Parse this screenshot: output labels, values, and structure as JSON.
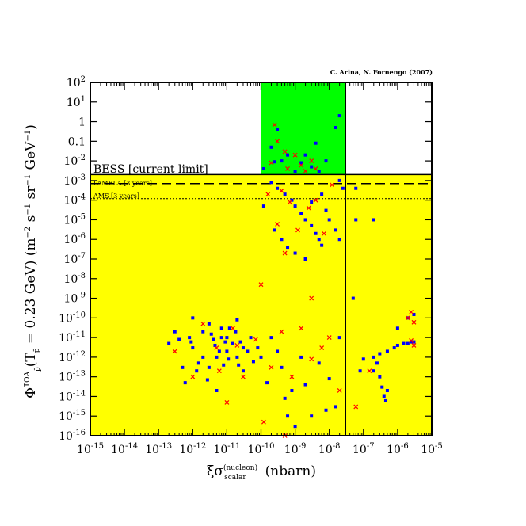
{
  "chart_data": {
    "type": "scatter",
    "credit": "C. Arina, N. Fornengo (2007)",
    "xlabel": "ξσ_scalar^(nucleon)   (nbarn)",
    "ylabel": "Φ_p̄^TOA (T_p̄ = 0.23 GeV)   (m^-2 s^-1 sr^-1 GeV^-1)",
    "x_scale": "log",
    "y_scale": "log",
    "xlim": [
      1e-15,
      1e-05
    ],
    "ylim": [
      1e-16,
      100
    ],
    "x_tick_exponents": [
      -15,
      -14,
      -13,
      -12,
      -11,
      -10,
      -9,
      -8,
      -7,
      -6,
      -5
    ],
    "y_tick_labels": [
      "10^2",
      "10^1",
      "1",
      "0.1",
      "10^-2",
      "10^-3",
      "10^-4",
      "10^-5",
      "10^-6",
      "10^-7",
      "10^-8",
      "10^-9",
      "10^-10",
      "10^-11",
      "10^-12",
      "10^-13",
      "10^-14",
      "10^-15",
      "10^-16"
    ],
    "y_tick_exponents": [
      2,
      1,
      0,
      -1,
      -2,
      -3,
      -4,
      -5,
      -6,
      -7,
      -8,
      -9,
      -10,
      -11,
      -12,
      -13,
      -14,
      -15,
      -16
    ],
    "annotations": {
      "bess": "BESS [current limit]",
      "pamela": "PAMELA [3 years]",
      "ams": "AMS [3 years]"
    },
    "limits": {
      "bess_y": 0.002,
      "pamela_y": 0.0007,
      "ams_y": 0.00012,
      "vertical_x": 3e-08
    },
    "regions": {
      "yellow_below_y": 0.002,
      "green_x": [
        1e-10,
        3e-08
      ],
      "green_y": [
        0.002,
        100
      ]
    },
    "colors": {
      "allowed_region": "#ffff00",
      "excluded_region": "#00ff00",
      "blue_points": "#0000ff",
      "red_points": "#ff0000"
    },
    "series": [
      {
        "marker": "square",
        "color": "#0000ff",
        "points": [
          [
            2e-10,
            0.05
          ],
          [
            3e-10,
            0.4
          ],
          [
            4e-10,
            0.01
          ],
          [
            6e-10,
            0.02
          ],
          [
            1e-09,
            0.003
          ],
          [
            1.5e-09,
            0.008
          ],
          [
            2e-09,
            0.02
          ],
          [
            3e-09,
            0.005
          ],
          [
            5e-09,
            0.003
          ],
          [
            8e-09,
            0.01
          ],
          [
            1.5e-08,
            0.5
          ],
          [
            2e-08,
            2
          ],
          [
            1.2e-10,
            0.004
          ],
          [
            2.5e-10,
            0.009
          ],
          [
            4e-09,
            0.08
          ],
          [
            2e-10,
            0.0008
          ],
          [
            3e-10,
            0.0004
          ],
          [
            5e-10,
            0.0002
          ],
          [
            8e-10,
            0.0001
          ],
          [
            1e-09,
            5e-05
          ],
          [
            1.5e-09,
            2e-05
          ],
          [
            2e-09,
            1e-05
          ],
          [
            3e-09,
            5e-06
          ],
          [
            4e-09,
            2e-06
          ],
          [
            5e-09,
            1e-06
          ],
          [
            6e-09,
            5e-07
          ],
          [
            8e-09,
            3e-05
          ],
          [
            1e-08,
            1e-05
          ],
          [
            1.5e-08,
            3e-06
          ],
          [
            2e-08,
            1e-06
          ],
          [
            2.5e-10,
            3e-06
          ],
          [
            4e-10,
            1e-06
          ],
          [
            6e-10,
            4e-07
          ],
          [
            1e-09,
            2e-07
          ],
          [
            2e-09,
            1e-07
          ],
          [
            3e-09,
            8e-05
          ],
          [
            6e-09,
            0.0002
          ],
          [
            1.2e-10,
            5e-05
          ],
          [
            2.5e-08,
            0.0004
          ],
          [
            2e-08,
            0.001
          ],
          [
            2e-13,
            5e-12
          ],
          [
            3e-13,
            2e-11
          ],
          [
            4e-13,
            8e-12
          ],
          [
            5e-13,
            3e-13
          ],
          [
            6e-13,
            5e-14
          ],
          [
            8e-13,
            1e-11
          ],
          [
            1e-12,
            1e-10
          ],
          [
            1e-12,
            3e-12
          ],
          [
            1.5e-12,
            5e-13
          ],
          [
            2e-12,
            2e-11
          ],
          [
            2e-12,
            1e-12
          ],
          [
            3e-12,
            5e-11
          ],
          [
            3e-12,
            3e-13
          ],
          [
            4e-12,
            8e-12
          ],
          [
            5e-12,
            1e-12
          ],
          [
            5e-12,
            2e-14
          ],
          [
            7e-12,
            3e-11
          ],
          [
            8e-12,
            4e-13
          ],
          [
            1e-11,
            1e-11
          ],
          [
            1e-11,
            2e-12
          ],
          [
            1.5e-11,
            5e-12
          ],
          [
            2e-11,
            1e-12
          ],
          [
            2e-11,
            8e-11
          ],
          [
            3e-11,
            3e-12
          ],
          [
            3e-11,
            2e-13
          ],
          [
            5e-11,
            1e-11
          ],
          [
            6e-11,
            6e-13
          ],
          [
            8e-11,
            3e-12
          ],
          [
            1e-10,
            1e-12
          ],
          [
            1.5e-10,
            5e-14
          ],
          [
            2e-10,
            1e-11
          ],
          [
            3e-10,
            2e-12
          ],
          [
            4e-10,
            3e-13
          ],
          [
            5e-10,
            8e-15
          ],
          [
            6e-10,
            1e-15
          ],
          [
            8e-10,
            2e-14
          ],
          [
            1e-09,
            3e-16
          ],
          [
            1.5e-09,
            1e-12
          ],
          [
            2e-09,
            4e-14
          ],
          [
            3e-09,
            1e-15
          ],
          [
            5e-09,
            5e-13
          ],
          [
            8e-09,
            2e-15
          ],
          [
            1e-08,
            8e-14
          ],
          [
            1.5e-08,
            3e-15
          ],
          [
            2e-08,
            1e-11
          ],
          [
            7e-12,
            1e-11
          ],
          [
            9e-12,
            6e-12
          ],
          [
            1.2e-11,
            3e-11
          ],
          [
            1.8e-11,
            2e-11
          ],
          [
            2.5e-11,
            6e-12
          ],
          [
            4e-11,
            2e-12
          ],
          [
            4.5e-12,
            4e-12
          ],
          [
            6e-12,
            2e-12
          ],
          [
            1.1e-11,
            8e-13
          ],
          [
            2.2e-11,
            4e-13
          ],
          [
            3.5e-12,
            1.5e-11
          ],
          [
            9e-13,
            6e-12
          ],
          [
            1.3e-12,
            2e-13
          ],
          [
            2.7e-12,
            7e-14
          ],
          [
            5e-08,
            1e-09
          ],
          [
            8e-08,
            2e-13
          ],
          [
            1e-07,
            8e-13
          ],
          [
            2e-07,
            1e-12
          ],
          [
            3e-07,
            1.5e-12
          ],
          [
            5e-07,
            2e-12
          ],
          [
            8e-07,
            3e-12
          ],
          [
            1e-06,
            4e-12
          ],
          [
            1.5e-06,
            5e-12
          ],
          [
            2e-06,
            5e-12
          ],
          [
            2.5e-06,
            6e-12
          ],
          [
            3e-06,
            6e-12
          ],
          [
            1e-06,
            3e-11
          ],
          [
            2e-06,
            1e-10
          ],
          [
            3e-06,
            1.5e-10
          ],
          [
            2e-07,
            2e-13
          ],
          [
            3e-07,
            1e-13
          ],
          [
            3.5e-07,
            3e-14
          ],
          [
            4e-07,
            1e-14
          ],
          [
            4.5e-07,
            6e-15
          ],
          [
            5e-07,
            2e-14
          ],
          [
            2.5e-07,
            5e-13
          ],
          [
            6e-08,
            1e-05
          ],
          [
            2e-07,
            1e-05
          ],
          [
            6e-08,
            0.0004
          ]
        ]
      },
      {
        "marker": "cross",
        "color": "#ff0000",
        "points": [
          [
            2e-10,
            0.008
          ],
          [
            2.5e-10,
            0.7
          ],
          [
            5e-10,
            0.03
          ],
          [
            6e-10,
            0.004
          ],
          [
            1e-09,
            0.02
          ],
          [
            1.5e-09,
            0.006
          ],
          [
            2e-09,
            0.003
          ],
          [
            3e-09,
            0.01
          ],
          [
            4e-09,
            0.004
          ],
          [
            3e-10,
            0.1
          ],
          [
            4e-10,
            0.0003
          ],
          [
            7e-10,
            8e-05
          ],
          [
            1.2e-09,
            3e-06
          ],
          [
            2.5e-09,
            4e-05
          ],
          [
            4e-09,
            0.0001
          ],
          [
            7e-09,
            2e-06
          ],
          [
            1.2e-08,
            0.0006
          ],
          [
            3e-10,
            6e-06
          ],
          [
            5e-10,
            2e-07
          ],
          [
            1.6e-10,
            0.0002
          ],
          [
            3e-13,
            2e-12
          ],
          [
            1e-12,
            1e-13
          ],
          [
            2e-12,
            5e-11
          ],
          [
            5e-12,
            3e-12
          ],
          [
            1e-11,
            5e-15
          ],
          [
            1.5e-11,
            3e-11
          ],
          [
            3e-11,
            1e-13
          ],
          [
            7e-11,
            8e-12
          ],
          [
            1e-10,
            5e-09
          ],
          [
            2e-10,
            3e-13
          ],
          [
            4e-10,
            2e-11
          ],
          [
            8e-10,
            1e-13
          ],
          [
            1.5e-09,
            3e-11
          ],
          [
            3e-09,
            8e-13
          ],
          [
            6e-09,
            3e-12
          ],
          [
            1e-08,
            1e-11
          ],
          [
            2e-08,
            2e-14
          ],
          [
            5e-10,
            1e-16
          ],
          [
            3e-09,
            1e-09
          ],
          [
            1.2e-10,
            5e-16
          ],
          [
            6e-12,
            2e-13
          ],
          [
            2e-11,
            4e-12
          ],
          [
            2e-06,
            1e-10
          ],
          [
            2.5e-06,
            2e-10
          ],
          [
            3e-06,
            6e-11
          ],
          [
            2.5e-06,
            7e-12
          ],
          [
            3e-06,
            4e-12
          ],
          [
            6e-08,
            3e-15
          ],
          [
            1.5e-07,
            2e-13
          ]
        ]
      }
    ]
  }
}
